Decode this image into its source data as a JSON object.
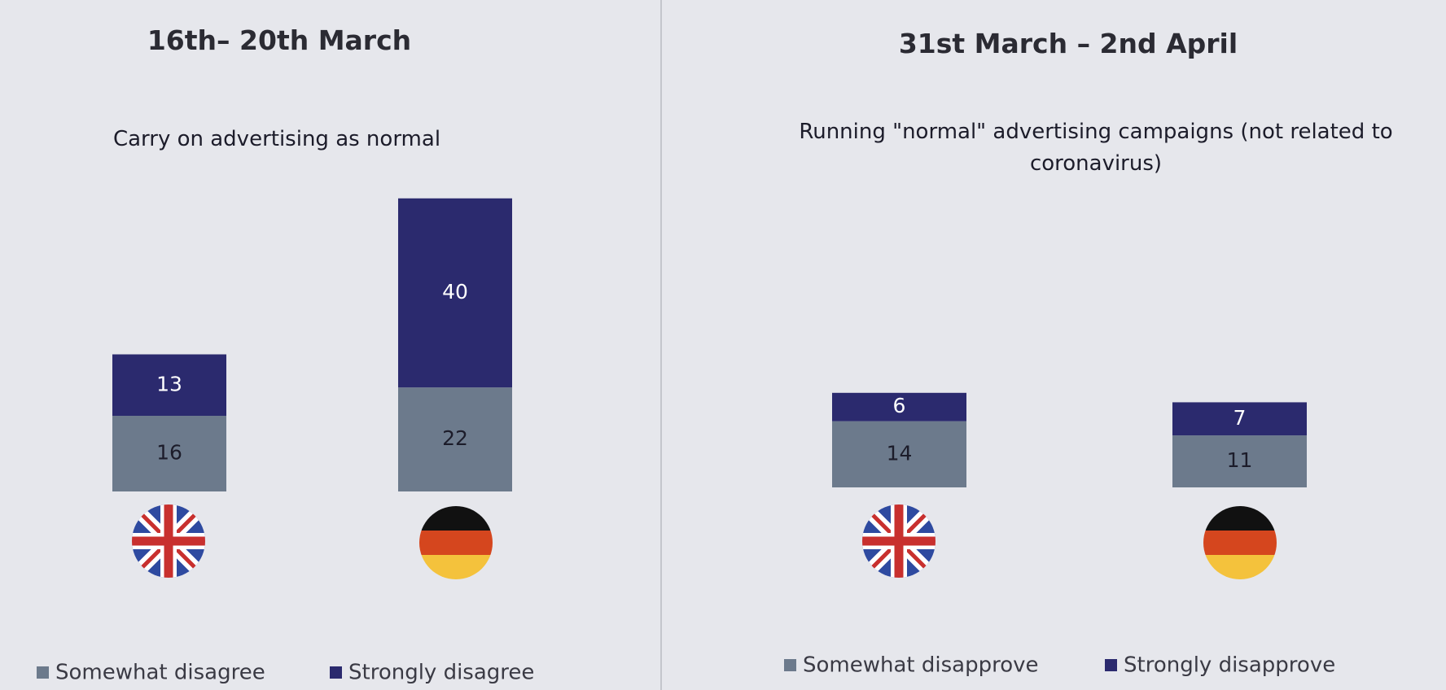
{
  "chart_data": [
    {
      "type": "bar",
      "stacked": true,
      "title": "16th– 20th March",
      "subtitle": "Carry on advertising as normal",
      "categories": [
        null,
        null
      ],
      "ylim": [
        0,
        70
      ],
      "series": [
        {
          "name": "Somewhat disagree",
          "color": "#6c7a8c",
          "values": [
            16,
            22
          ]
        },
        {
          "name": "Strongly disagree",
          "color": "#2b2a6e",
          "values": [
            13,
            40
          ]
        }
      ]
    },
    {
      "type": "bar",
      "stacked": true,
      "title": "31st March – 2nd April",
      "subtitle": "Running \"normal\" advertising campaigns (not related to coronavirus)",
      "categories": [
        null,
        null
      ],
      "ylim": [
        0,
        70
      ],
      "series": [
        {
          "name": "Somewhat disapprove",
          "color": "#6c7a8c",
          "values": [
            14,
            11
          ]
        },
        {
          "name": "Strongly disapprove",
          "color": "#2b2a6e",
          "values": [
            6,
            7
          ]
        }
      ]
    }
  ]
}
